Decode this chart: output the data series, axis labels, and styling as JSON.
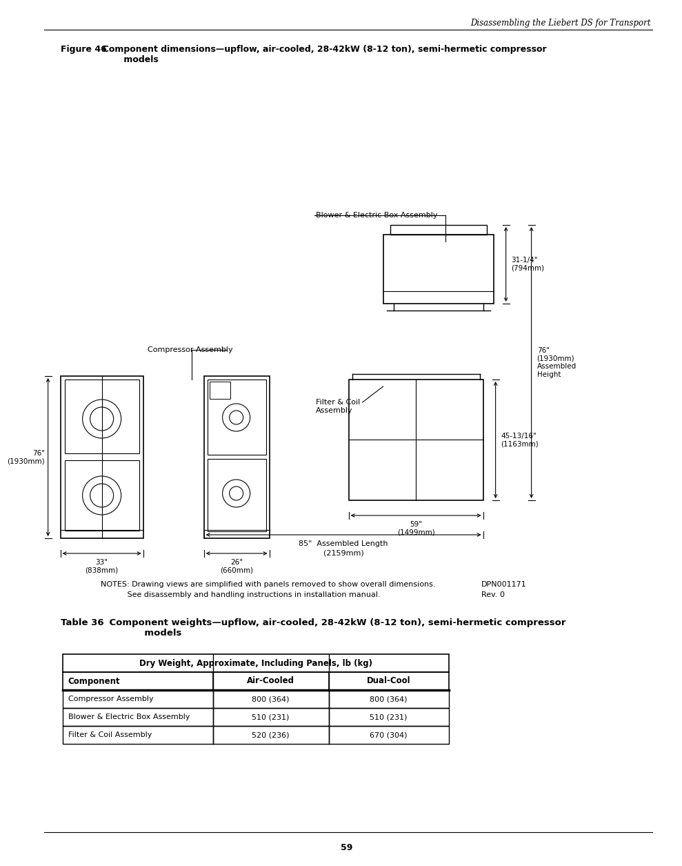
{
  "page_header_italic": "Disassembling the Liebert DS for Transport",
  "figure_title_bold": "Figure 46",
  "figure_title_rest": "  Component dimensions—upflow, air-cooled, 28-42kW (8-12 ton), semi-hermetic compressor\n         models",
  "label_blower": "Blower & Electric Box Assembly",
  "label_compressor": "Compressor Assembly",
  "label_filter": "Filter & Coil\nAssembly",
  "dim_31_14": "31-1/4\"\n(794mm)",
  "dim_76_right": "76\"\n(1930mm)\nAssembled\nHeight",
  "dim_76_left": "76\"\n(1930mm)",
  "dim_45_13_16": "45-13/16\"\n(1163mm)",
  "dim_33": "33\"\n(838mm)",
  "dim_26": "26\"\n(660mm)",
  "dim_59": "59\"\n(1499mm)",
  "dim_85_assemble": "85\"  Assembled Length",
  "dim_85_mm": "(2159mm)",
  "notes_line1": "NOTES: Drawing views are simplified with panels removed to show overall dimensions.",
  "notes_line2": "           See disassembly and handling instructions in installation manual.",
  "dpn": "DPN001171",
  "rev": "Rev. 0",
  "table_title_bold": "Table 36",
  "table_title_rest": "    Component weights—upflow, air-cooled, 28-42kW (8-12 ton), semi-hermetic compressor\n               models",
  "table_header_merged": "Dry Weight, Approximate, Including Panels, lb (kg)",
  "col_headers": [
    "Component",
    "Air-Cooled",
    "Dual-Cool"
  ],
  "rows": [
    [
      "Compressor Assembly",
      "800 (364)",
      "800 (364)"
    ],
    [
      "Blower & Electric Box Assembly",
      "510 (231)",
      "510 (231)"
    ],
    [
      "Filter & Coil Assembly",
      "520 (236)",
      "670 (304)"
    ]
  ],
  "page_number": "59",
  "background_color": "#ffffff",
  "text_color": "#000000",
  "line_color": "#000000"
}
